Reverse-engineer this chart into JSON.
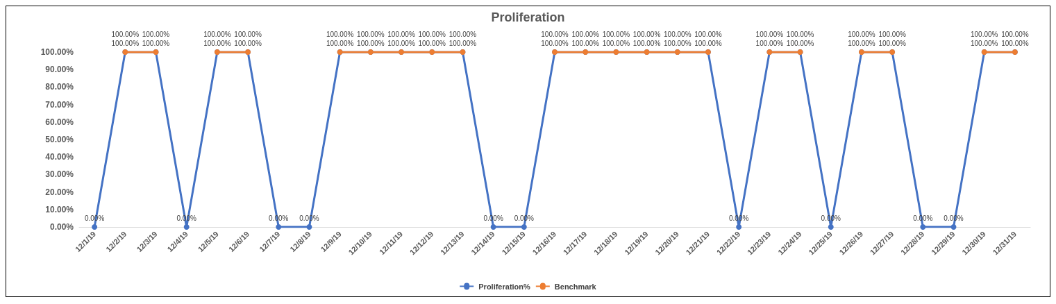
{
  "chart_data": {
    "type": "line",
    "title": "Proliferation",
    "categories": [
      "12/1/19",
      "12/2/19",
      "12/3/19",
      "12/4/19",
      "12/5/19",
      "12/6/19",
      "12/7/19",
      "12/8/19",
      "12/9/19",
      "12/10/19",
      "12/11/19",
      "12/12/19",
      "12/13/19",
      "12/14/19",
      "12/15/19",
      "12/16/19",
      "12/17/19",
      "12/18/19",
      "12/19/19",
      "12/20/19",
      "12/21/19",
      "12/22/19",
      "12/23/19",
      "12/24/19",
      "12/25/19",
      "12/26/19",
      "12/27/19",
      "12/28/19",
      "12/29/19",
      "12/30/19",
      "12/31/19"
    ],
    "series": [
      {
        "name": "Proliferation%",
        "color": "#4472c4",
        "values": [
          0,
          100,
          100,
          0,
          100,
          100,
          0,
          0,
          100,
          100,
          100,
          100,
          100,
          0,
          0,
          100,
          100,
          100,
          100,
          100,
          100,
          0,
          100,
          100,
          0,
          100,
          100,
          0,
          0,
          100,
          100
        ],
        "value_labels": [
          "0.00%",
          "100.00%",
          "100.00%",
          "0.00%",
          "100.00%",
          "100.00%",
          "0.00%",
          "0.00%",
          "100.00%",
          "100.00%",
          "100.00%",
          "100.00%",
          "100.00%",
          "0.00%",
          "0.00%",
          "100.00%",
          "100.00%",
          "100.00%",
          "100.00%",
          "100.00%",
          "100.00%",
          "0.00%",
          "100.00%",
          "100.00%",
          "0.00%",
          "100.00%",
          "100.00%",
          "0.00%",
          "0.00%",
          "100.00%",
          "100.00%"
        ]
      },
      {
        "name": "Benchmark",
        "color": "#ed7d31",
        "values": [
          null,
          100,
          100,
          null,
          100,
          100,
          null,
          null,
          100,
          100,
          100,
          100,
          100,
          null,
          null,
          100,
          100,
          100,
          100,
          100,
          100,
          null,
          100,
          100,
          null,
          100,
          100,
          null,
          null,
          100,
          100
        ],
        "value_labels": [
          null,
          "100.00%",
          "100.00%",
          null,
          "100.00%",
          "100.00%",
          null,
          null,
          "100.00%",
          "100.00%",
          "100.00%",
          "100.00%",
          "100.00%",
          null,
          null,
          "100.00%",
          "100.00%",
          "100.00%",
          "100.00%",
          "100.00%",
          "100.00%",
          null,
          "100.00%",
          "100.00%",
          null,
          "100.00%",
          "100.00%",
          null,
          null,
          "100.00%",
          "100.00%"
        ]
      }
    ],
    "ylim": [
      0,
      100
    ],
    "yticks": [
      {
        "value": 0,
        "label": "0.00%"
      },
      {
        "value": 10,
        "label": "10.00%"
      },
      {
        "value": 20,
        "label": "20.00%"
      },
      {
        "value": 30,
        "label": "30.00%"
      },
      {
        "value": 40,
        "label": "40.00%"
      },
      {
        "value": 50,
        "label": "50.00%"
      },
      {
        "value": 60,
        "label": "60.00%"
      },
      {
        "value": 70,
        "label": "70.00%"
      },
      {
        "value": 80,
        "label": "80.00%"
      },
      {
        "value": 90,
        "label": "90.00%"
      },
      {
        "value": 100,
        "label": "100.00%"
      }
    ],
    "legend": "bottom",
    "marker": "circle",
    "line_style": "solid",
    "grid": false
  }
}
